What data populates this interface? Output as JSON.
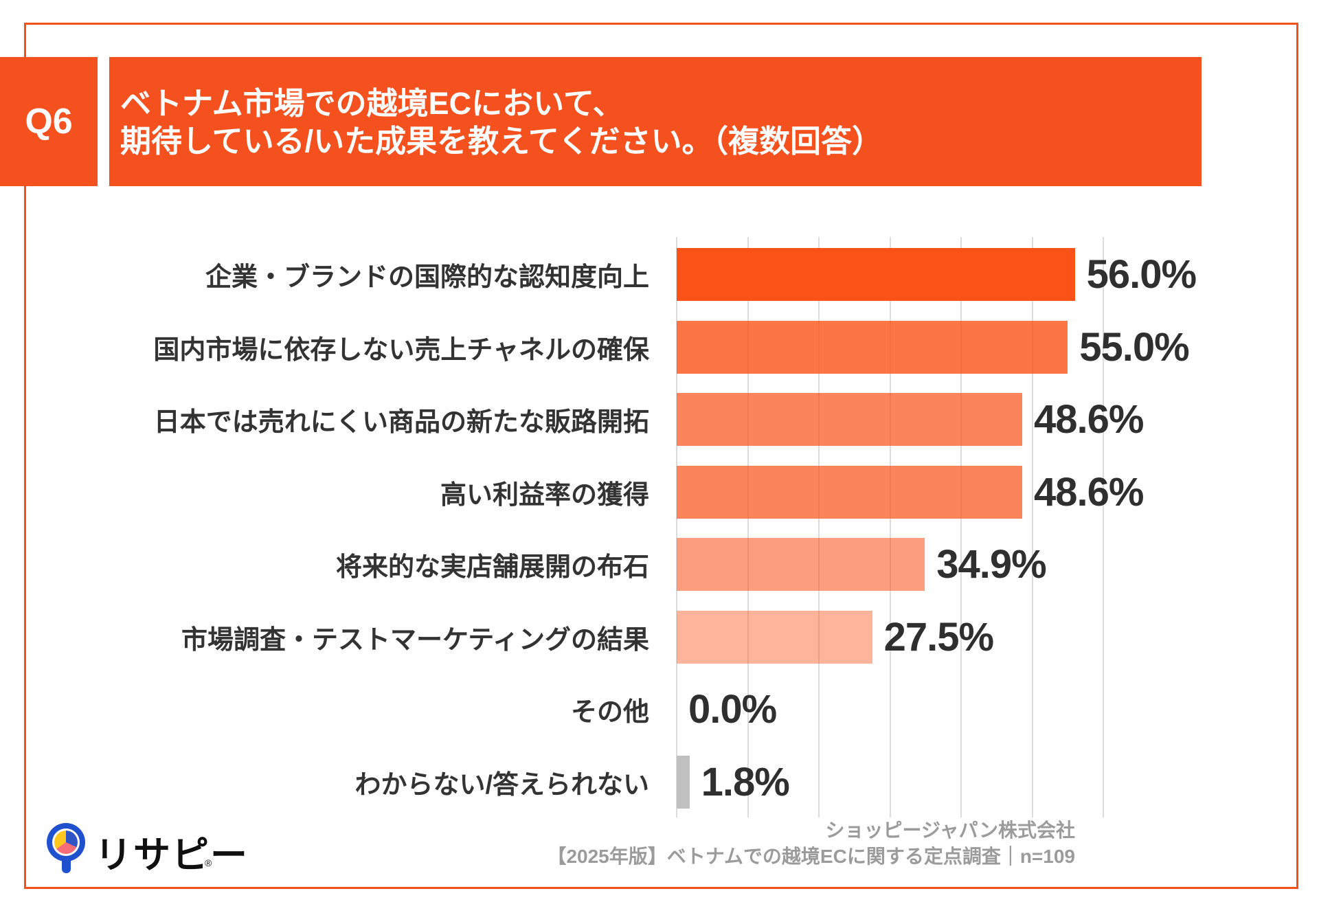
{
  "page": {
    "border_color": "#F2511B",
    "background": "#FFFFFF"
  },
  "question": {
    "number": "Q6",
    "band_color": "#F4511E",
    "title_lines": [
      "ベトナム市場での越境ECにおいて、",
      "期待している/いた成果を教えてください。（複数回答）"
    ]
  },
  "chart_data": {
    "type": "bar",
    "orientation": "horizontal",
    "categories": [
      "企業・ブランドの国際的な認知度向上",
      "国内市場に依存しない売上チャネルの確保",
      "日本では売れにくい商品の新たな販路開拓",
      "高い利益率の獲得",
      "将来的な実店舗展開の布石",
      "市場調査・テストマーケティングの結果",
      "その他",
      "わからない/答えられない"
    ],
    "values": [
      56.0,
      55.0,
      48.6,
      48.6,
      34.9,
      27.5,
      0.0,
      1.8
    ],
    "value_labels": [
      "56.0%",
      "55.0%",
      "48.6%",
      "48.6%",
      "34.9%",
      "27.5%",
      "0.0%",
      "1.8%"
    ],
    "bar_colors": [
      "rgba(250,82,23,1)",
      "rgba(250,82,23,0.80)",
      "rgba(250,82,23,0.71)",
      "rgba(250,82,23,0.71)",
      "rgba(250,82,23,0.56)",
      "rgba(250,82,23,0.43)",
      "rgba(250,82,23,0)",
      "#C0C0C0"
    ],
    "xlim": [
      0,
      60
    ],
    "grid": true,
    "grid_interval_percent": 10,
    "grid_color": "#DCDCDC",
    "label_color": "#333333",
    "value_color": "#2F2F2F"
  },
  "footer": {
    "company": "ショッピージャパン株式会社",
    "survey_note": "【2025年版】ベトナムでの越境ECに関する定点調査｜n=109",
    "text_color": "#9B9B9B"
  },
  "logo": {
    "brand_text": "リサピー",
    "registered_mark": "®",
    "ring_color": "#1F51CE",
    "stem_color": "#1F51CE",
    "pie_colors": {
      "blue": "#2E54C5",
      "pink": "#F76E79",
      "yellow": "#FFC61E"
    }
  }
}
